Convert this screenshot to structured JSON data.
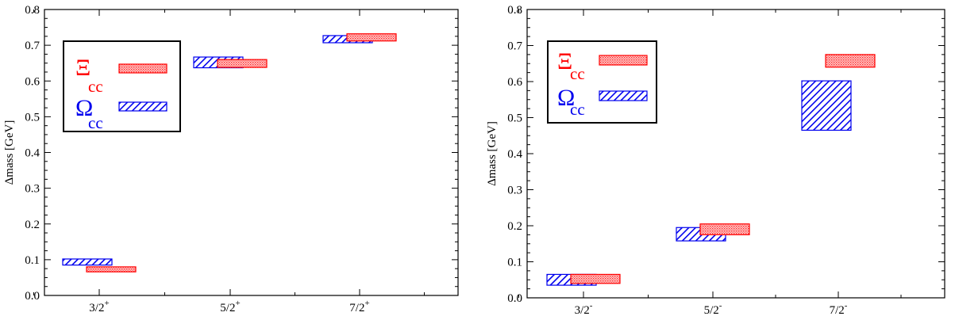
{
  "colors": {
    "xi": "#ff0000",
    "omega": "#0000ee",
    "axis": "#000000"
  },
  "chart_data": [
    {
      "type": "bar",
      "ylabel": "Δmass [GeV]",
      "ylim": [
        0.0,
        0.8
      ],
      "yticks": [
        "0.0",
        "0.1",
        "0.2",
        "0.3",
        "0.4",
        "0.5",
        "0.6",
        "0.7",
        "0.8"
      ],
      "categories": [
        {
          "base": "3/2",
          "sup": "+"
        },
        {
          "base": "5/2",
          "sup": "+"
        },
        {
          "base": "7/2",
          "sup": "+"
        }
      ],
      "legend": [
        {
          "symbol": "Ξ",
          "sub": "cc",
          "color_key": "xi"
        },
        {
          "symbol": "Ω",
          "sub": "cc",
          "color_key": "omega"
        }
      ],
      "series": [
        {
          "key": "omega",
          "ranges": [
            [
              0.085,
              0.102
            ],
            [
              0.637,
              0.667
            ],
            [
              0.707,
              0.727
            ]
          ]
        },
        {
          "key": "xi",
          "ranges": [
            [
              0.066,
              0.08
            ],
            [
              0.638,
              0.66
            ],
            [
              0.712,
              0.732
            ]
          ]
        }
      ]
    },
    {
      "type": "bar",
      "ylabel": "Δmass [GeV]",
      "ylim": [
        0.0,
        0.8
      ],
      "yticks": [
        "0.0",
        "0.1",
        "0.2",
        "0.3",
        "0.4",
        "0.5",
        "0.6",
        "0.7",
        "0.8"
      ],
      "categories": [
        {
          "base": "3/2",
          "sup": "-"
        },
        {
          "base": "5/2",
          "sup": "-"
        },
        {
          "base": "7/2",
          "sup": "-"
        }
      ],
      "legend": [
        {
          "symbol": "Ξ",
          "sub": "cc",
          "color_key": "xi"
        },
        {
          "symbol": "Ω",
          "sub": "cc",
          "color_key": "omega"
        }
      ],
      "series": [
        {
          "key": "omega",
          "ranges": [
            [
              0.035,
              0.065
            ],
            [
              0.158,
              0.195
            ],
            [
              0.465,
              0.602
            ]
          ]
        },
        {
          "key": "xi",
          "ranges": [
            [
              0.04,
              0.065
            ],
            [
              0.175,
              0.205
            ],
            [
              0.64,
              0.675
            ]
          ]
        }
      ]
    }
  ]
}
